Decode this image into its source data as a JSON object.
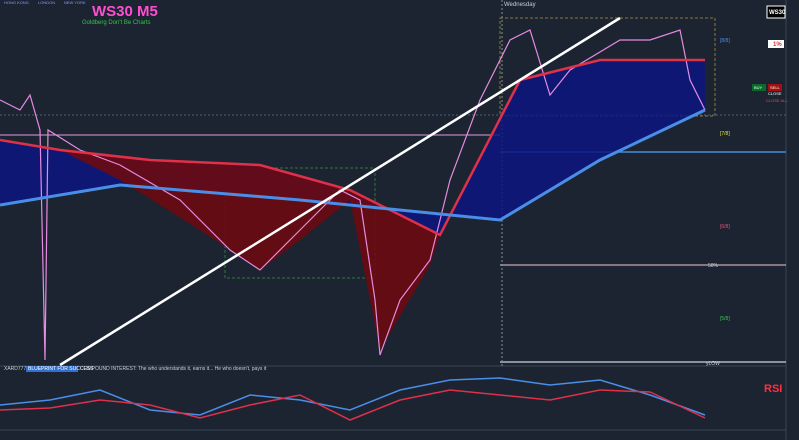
{
  "header": {
    "symbol": "WS30 M5",
    "subtitle": "Goldberg Don't Be Charts",
    "day": "Wednesday",
    "panel_symbol": "WS30"
  },
  "sessions": [
    "HONG KONG",
    "LONDON",
    "NEW YORK"
  ],
  "levels": [
    "[8/8]",
    "[7/8]",
    "[6/8]",
    "50%",
    "[5/8]",
    "yLOW"
  ],
  "buttons": {
    "risk": "1%",
    "buy": "BUY",
    "sell": "SELL",
    "close": "CLOSE",
    "close_all": "CLOSE ALL"
  },
  "footer": {
    "brand": "XARD777",
    "tag": "BLUEPRINT FOR SUCCESS",
    "message": "COMPOUND INTEREST: The who understands it, earns it... He who doesn't, pays it"
  },
  "rsi": {
    "label": "RSI"
  }
}
